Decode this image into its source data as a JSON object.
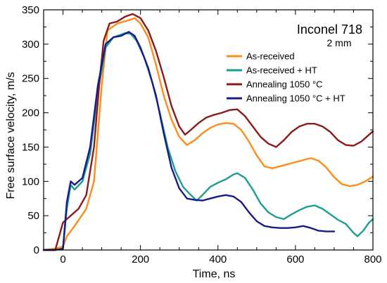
{
  "chart_data": {
    "type": "line",
    "title": "Inconel 718",
    "subtitle": "2 mm",
    "xlabel": "Time, ns",
    "ylabel": "Free surface velocity, m/s",
    "xlim": [
      -50,
      800
    ],
    "ylim": [
      0,
      350
    ],
    "x_ticks": [
      0,
      200,
      400,
      600,
      800
    ],
    "y_ticks": [
      0,
      50,
      100,
      150,
      200,
      250,
      300,
      350
    ],
    "grid": false,
    "legend_position": "top-right",
    "series": [
      {
        "name": "As-received",
        "color": "#ff8c1a",
        "points": [
          [
            -50,
            0
          ],
          [
            -20,
            2
          ],
          [
            0,
            5
          ],
          [
            10,
            20
          ],
          [
            30,
            35
          ],
          [
            60,
            60
          ],
          [
            80,
            100
          ],
          [
            100,
            240
          ],
          [
            115,
            320
          ],
          [
            140,
            330
          ],
          [
            170,
            335
          ],
          [
            185,
            338
          ],
          [
            200,
            330
          ],
          [
            220,
            310
          ],
          [
            240,
            270
          ],
          [
            260,
            225
          ],
          [
            280,
            190
          ],
          [
            300,
            165
          ],
          [
            320,
            153
          ],
          [
            340,
            160
          ],
          [
            360,
            170
          ],
          [
            380,
            178
          ],
          [
            400,
            183
          ],
          [
            420,
            185
          ],
          [
            440,
            184
          ],
          [
            460,
            175
          ],
          [
            480,
            158
          ],
          [
            500,
            138
          ],
          [
            520,
            122
          ],
          [
            540,
            119
          ],
          [
            560,
            122
          ],
          [
            580,
            125
          ],
          [
            600,
            128
          ],
          [
            620,
            131
          ],
          [
            640,
            134
          ],
          [
            660,
            130
          ],
          [
            680,
            120
          ],
          [
            700,
            106
          ],
          [
            720,
            96
          ],
          [
            740,
            93
          ],
          [
            760,
            95
          ],
          [
            780,
            100
          ],
          [
            800,
            107
          ]
        ]
      },
      {
        "name": "As-received + HT",
        "color": "#1a9e8f",
        "points": [
          [
            -50,
            0
          ],
          [
            -20,
            0
          ],
          [
            0,
            2
          ],
          [
            10,
            60
          ],
          [
            20,
            95
          ],
          [
            30,
            88
          ],
          [
            50,
            100
          ],
          [
            70,
            140
          ],
          [
            90,
            230
          ],
          [
            110,
            295
          ],
          [
            130,
            310
          ],
          [
            160,
            316
          ],
          [
            175,
            315
          ],
          [
            190,
            305
          ],
          [
            210,
            280
          ],
          [
            230,
            245
          ],
          [
            250,
            200
          ],
          [
            270,
            150
          ],
          [
            290,
            115
          ],
          [
            310,
            92
          ],
          [
            330,
            80
          ],
          [
            345,
            72
          ],
          [
            360,
            80
          ],
          [
            380,
            92
          ],
          [
            400,
            98
          ],
          [
            420,
            103
          ],
          [
            440,
            110
          ],
          [
            450,
            112
          ],
          [
            470,
            105
          ],
          [
            490,
            88
          ],
          [
            510,
            68
          ],
          [
            530,
            55
          ],
          [
            550,
            48
          ],
          [
            570,
            45
          ],
          [
            590,
            52
          ],
          [
            610,
            58
          ],
          [
            630,
            63
          ],
          [
            650,
            65
          ],
          [
            670,
            60
          ],
          [
            690,
            52
          ],
          [
            710,
            44
          ],
          [
            730,
            38
          ],
          [
            750,
            25
          ],
          [
            760,
            20
          ],
          [
            775,
            28
          ],
          [
            790,
            40
          ],
          [
            800,
            45
          ]
        ]
      },
      {
        "name": "Annealing 1050 °C",
        "color": "#8b1a1a",
        "points": [
          [
            -50,
            0
          ],
          [
            -20,
            0
          ],
          [
            0,
            40
          ],
          [
            20,
            50
          ],
          [
            40,
            60
          ],
          [
            60,
            80
          ],
          [
            80,
            150
          ],
          [
            95,
            250
          ],
          [
            105,
            305
          ],
          [
            120,
            330
          ],
          [
            140,
            333
          ],
          [
            160,
            340
          ],
          [
            180,
            344
          ],
          [
            200,
            338
          ],
          [
            220,
            320
          ],
          [
            240,
            290
          ],
          [
            260,
            252
          ],
          [
            280,
            210
          ],
          [
            300,
            180
          ],
          [
            315,
            168
          ],
          [
            330,
            175
          ],
          [
            350,
            185
          ],
          [
            370,
            193
          ],
          [
            390,
            197
          ],
          [
            410,
            200
          ],
          [
            430,
            204
          ],
          [
            450,
            205
          ],
          [
            470,
            195
          ],
          [
            490,
            180
          ],
          [
            510,
            165
          ],
          [
            530,
            155
          ],
          [
            550,
            150
          ],
          [
            570,
            160
          ],
          [
            590,
            172
          ],
          [
            610,
            180
          ],
          [
            630,
            184
          ],
          [
            650,
            184
          ],
          [
            670,
            180
          ],
          [
            690,
            172
          ],
          [
            710,
            160
          ],
          [
            730,
            153
          ],
          [
            750,
            152
          ],
          [
            770,
            158
          ],
          [
            790,
            168
          ],
          [
            800,
            173
          ]
        ]
      },
      {
        "name": "Annealing 1050 °C + HT",
        "color": "#1a1a8c",
        "points": [
          [
            -50,
            0
          ],
          [
            -20,
            0
          ],
          [
            0,
            2
          ],
          [
            10,
            70
          ],
          [
            20,
            100
          ],
          [
            30,
            95
          ],
          [
            50,
            105
          ],
          [
            70,
            150
          ],
          [
            90,
            240
          ],
          [
            110,
            300
          ],
          [
            130,
            310
          ],
          [
            150,
            312
          ],
          [
            170,
            318
          ],
          [
            185,
            312
          ],
          [
            200,
            295
          ],
          [
            220,
            265
          ],
          [
            240,
            225
          ],
          [
            260,
            170
          ],
          [
            280,
            120
          ],
          [
            300,
            90
          ],
          [
            320,
            75
          ],
          [
            340,
            73
          ],
          [
            360,
            72
          ],
          [
            380,
            75
          ],
          [
            400,
            78
          ],
          [
            420,
            80
          ],
          [
            440,
            78
          ],
          [
            460,
            70
          ],
          [
            480,
            55
          ],
          [
            500,
            42
          ],
          [
            520,
            35
          ],
          [
            540,
            33
          ],
          [
            560,
            32
          ],
          [
            580,
            32
          ],
          [
            600,
            33
          ],
          [
            620,
            35
          ],
          [
            640,
            32
          ],
          [
            660,
            28
          ],
          [
            680,
            27
          ],
          [
            700,
            27
          ]
        ]
      }
    ]
  }
}
